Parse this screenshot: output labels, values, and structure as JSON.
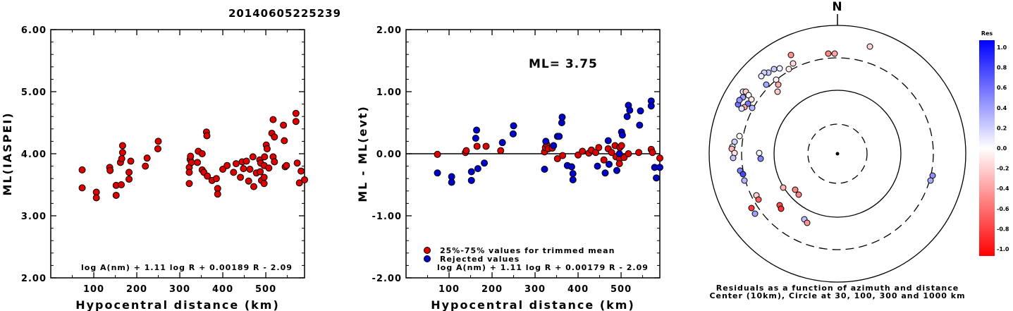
{
  "title": "20140605225239",
  "chart_data": [
    {
      "type": "scatter",
      "xlabel": "Hypocentral distance (km)",
      "ylabel": "ML(IASPEI)",
      "xlim": [
        0,
        590
      ],
      "ylim": [
        2.0,
        6.0
      ],
      "x_ticks": [
        "100",
        "200",
        "300",
        "400",
        "500"
      ],
      "y_ticks": [
        "6.00",
        "5.00",
        "4.00",
        "3.00",
        "2.00"
      ],
      "formula": "log A(nm) + 1.11 log R + 0.00189 R - 2.09",
      "series": [
        {
          "color": "#dd0000",
          "points": [
            [
              73,
              3.74
            ],
            [
              73,
              3.45
            ],
            [
              106,
              3.38
            ],
            [
              106,
              3.29
            ],
            [
              137,
              3.78
            ],
            [
              138,
              3.73
            ],
            [
              152,
              3.33
            ],
            [
              152,
              3.49
            ],
            [
              164,
              3.5
            ],
            [
              162,
              3.86
            ],
            [
              165,
              3.92
            ],
            [
              167,
              4.13
            ],
            [
              167,
              4.02
            ],
            [
              182,
              3.59
            ],
            [
              182,
              3.7
            ],
            [
              186,
              3.88
            ],
            [
              220,
              3.8
            ],
            [
              224,
              3.93
            ],
            [
              250,
              4.2
            ],
            [
              249,
              4.08
            ],
            [
              322,
              3.78
            ],
            [
              322,
              3.7
            ],
            [
              322,
              3.52
            ],
            [
              324,
              3.91
            ],
            [
              325,
              3.96
            ],
            [
              327,
              3.86
            ],
            [
              341,
              3.86
            ],
            [
              343,
              4.04
            ],
            [
              352,
              4.0
            ],
            [
              352,
              3.74
            ],
            [
              356,
              3.7
            ],
            [
              362,
              4.35
            ],
            [
              363,
              4.29
            ],
            [
              364,
              3.64
            ],
            [
              375,
              3.57
            ],
            [
              385,
              3.6
            ],
            [
              388,
              3.44
            ],
            [
              388,
              3.35
            ],
            [
              400,
              3.75
            ],
            [
              410,
              3.81
            ],
            [
              425,
              3.7
            ],
            [
              431,
              3.84
            ],
            [
              441,
              3.62
            ],
            [
              445,
              3.87
            ],
            [
              448,
              3.76
            ],
            [
              455,
              3.88
            ],
            [
              460,
              3.56
            ],
            [
              463,
              3.75
            ],
            [
              470,
              3.95
            ],
            [
              472,
              3.47
            ],
            [
              478,
              3.69
            ],
            [
              486,
              3.9
            ],
            [
              487,
              3.71
            ],
            [
              488,
              3.85
            ],
            [
              490,
              3.57
            ],
            [
              496,
              3.62
            ],
            [
              496,
              3.81
            ],
            [
              496,
              3.52
            ],
            [
              497,
              3.95
            ],
            [
              501,
              4.14
            ],
            [
              503,
              4.08
            ],
            [
              507,
              3.77
            ],
            [
              514,
              4.33
            ],
            [
              517,
              3.95
            ],
            [
              517,
              4.55
            ],
            [
              520,
              4.27
            ],
            [
              520,
              3.87
            ],
            [
              541,
              4.46
            ],
            [
              543,
              4.21
            ],
            [
              545,
              3.79
            ],
            [
              548,
              3.81
            ],
            [
              570,
              4.65
            ],
            [
              570,
              4.52
            ],
            [
              573,
              3.85
            ],
            [
              578,
              3.53
            ],
            [
              582,
              3.72
            ],
            [
              592,
              3.58
            ]
          ]
        }
      ]
    },
    {
      "type": "scatter",
      "xlabel": "Hypocentral distance (km)",
      "ylabel": "ML - ML(evt)",
      "xlim": [
        0,
        590
      ],
      "ylim": [
        -2.0,
        2.0
      ],
      "x_ticks": [
        "100",
        "200",
        "300",
        "400",
        "500"
      ],
      "y_ticks": [
        "2.00",
        "1.00",
        "0.00",
        "-1.00",
        "-2.00"
      ],
      "reference_line": 0.0,
      "annotation": "ML= 3.75",
      "formula": "log A(nm) + 1.11 log R + 0.00179 R - 2.09",
      "legend_position": "bottom-left",
      "series": [
        {
          "name": "25%-75% values for trimmed mean",
          "color": "#dd0000",
          "points": [
            [
              73,
              -0.01
            ],
            [
              138,
              0.02
            ],
            [
              140,
              0.05
            ],
            [
              165,
              0.12
            ],
            [
              186,
              0.12
            ],
            [
              220,
              0.05
            ],
            [
              322,
              0.03
            ],
            [
              324,
              0.1
            ],
            [
              327,
              0.15
            ],
            [
              331,
              0.08
            ],
            [
              340,
              0.09
            ],
            [
              352,
              -0.08
            ],
            [
              364,
              -0.03
            ],
            [
              400,
              -0.02
            ],
            [
              410,
              0.04
            ],
            [
              425,
              0.01
            ],
            [
              431,
              0.06
            ],
            [
              441,
              0.02
            ],
            [
              448,
              0.1
            ],
            [
              460,
              -0.1
            ],
            [
              470,
              0.08
            ],
            [
              478,
              0.02
            ],
            [
              486,
              0.13
            ],
            [
              488,
              -0.05
            ],
            [
              496,
              -0.08
            ],
            [
              496,
              -0.16
            ],
            [
              497,
              0.1
            ],
            [
              501,
              0.13
            ],
            [
              507,
              -0.06
            ],
            [
              517,
              0.0
            ],
            [
              541,
              0.02
            ],
            [
              570,
              0.07
            ],
            [
              573,
              0.02
            ],
            [
              592,
              -0.07
            ]
          ]
        },
        {
          "name": "Rejected values",
          "color": "#0000cc",
          "points": [
            [
              73,
              -0.31
            ],
            [
              106,
              -0.37
            ],
            [
              106,
              -0.46
            ],
            [
              152,
              -0.29
            ],
            [
              152,
              -0.43
            ],
            [
              162,
              0.25
            ],
            [
              164,
              0.38
            ],
            [
              167,
              -0.24
            ],
            [
              182,
              -0.15
            ],
            [
              224,
              0.18
            ],
            [
              249,
              0.32
            ],
            [
              250,
              0.45
            ],
            [
              322,
              -0.25
            ],
            [
              325,
              0.2
            ],
            [
              343,
              0.13
            ],
            [
              352,
              0.28
            ],
            [
              356,
              0.28
            ],
            [
              362,
              0.5
            ],
            [
              363,
              0.59
            ],
            [
              375,
              -0.19
            ],
            [
              385,
              -0.21
            ],
            [
              388,
              -0.32
            ],
            [
              388,
              -0.42
            ],
            [
              445,
              -0.2
            ],
            [
              463,
              -0.31
            ],
            [
              470,
              0.21
            ],
            [
              472,
              -0.17
            ],
            [
              490,
              -0.27
            ],
            [
              496,
              0.0
            ],
            [
              501,
              0.35
            ],
            [
              503,
              0.3
            ],
            [
              514,
              0.6
            ],
            [
              517,
              0.78
            ],
            [
              520,
              0.7
            ],
            [
              543,
              0.46
            ],
            [
              545,
              0.69
            ],
            [
              570,
              0.85
            ],
            [
              570,
              0.77
            ],
            [
              578,
              -0.22
            ],
            [
              582,
              -0.39
            ],
            [
              592,
              -0.22
            ]
          ]
        }
      ]
    },
    {
      "type": "scatter",
      "subtype": "polar",
      "north_label": "N",
      "caption_line1": "Residuals as a function of azimuth and distance",
      "caption_line2": "Center (10km), Circle at 30, 100, 300 and 1000 km",
      "colorbar_title": "Res",
      "colorbar_ticks": [
        "1.0",
        "0.8",
        "0.6",
        "0.4",
        "0.2",
        "0.0",
        "-0.2",
        "-0.4",
        "-0.6",
        "-0.8",
        "-1.0"
      ],
      "colorbar_range": [
        -1.0,
        1.0
      ],
      "points": [
        [
          1,
          -0.16
        ],
        [
          1,
          -0.36
        ],
        [
          1,
          -0.47
        ],
        [
          1,
          -0.43
        ],
        [
          1,
          -0.14
        ],
        [
          1,
          -0.08
        ],
        [
          1,
          0.06
        ],
        [
          1,
          0.22
        ],
        [
          1,
          0.21
        ],
        [
          1,
          0.18
        ],
        [
          1,
          0.08
        ],
        [
          1,
          -0.05
        ],
        [
          1,
          -0.32
        ],
        [
          1,
          -0.2
        ],
        [
          1,
          0.35
        ],
        [
          1,
          0.1
        ],
        [
          1,
          -0.22
        ],
        [
          1,
          0.02
        ],
        [
          1,
          -0.1
        ],
        [
          1,
          0.4
        ],
        [
          1,
          0.52
        ],
        [
          1,
          -0.35
        ],
        [
          1,
          0.55
        ],
        [
          1,
          0.42
        ],
        [
          1,
          0.3
        ],
        [
          1,
          0.12
        ],
        [
          1,
          -0.02
        ],
        [
          1,
          0.18
        ],
        [
          1,
          0.06
        ],
        [
          1,
          -0.28
        ],
        [
          1,
          -0.12
        ],
        [
          1,
          0.24
        ],
        [
          1,
          0.05
        ],
        [
          1,
          0.48
        ],
        [
          1,
          0.5
        ],
        [
          1,
          0.72
        ],
        [
          1,
          0.3
        ],
        [
          1,
          -0.3
        ],
        [
          1,
          -0.48
        ],
        [
          1,
          -0.5
        ],
        [
          1,
          -0.18
        ],
        [
          1,
          -0.62
        ],
        [
          1,
          -0.7
        ],
        [
          1,
          -0.8
        ],
        [
          1,
          -0.78
        ],
        [
          1,
          0.38
        ],
        [
          1,
          0.26
        ],
        [
          1,
          -0.42
        ],
        [
          1,
          0.45
        ],
        [
          1,
          0.33
        ]
      ]
    }
  ]
}
